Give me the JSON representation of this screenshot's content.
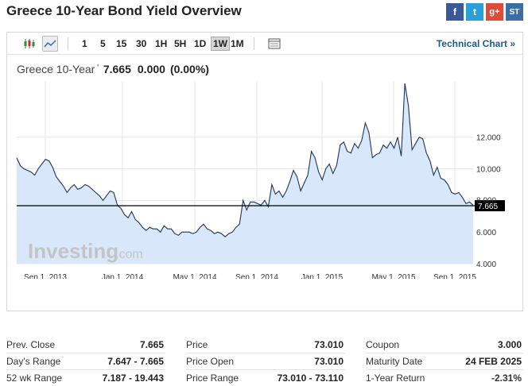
{
  "page": {
    "title": "Greece 10-Year Bond Yield Overview",
    "social": [
      "f",
      "t",
      "g+",
      "ST"
    ]
  },
  "toolbar": {
    "timeframes": [
      "1",
      "5",
      "15",
      "30",
      "1H",
      "5H",
      "1D",
      "1W",
      "1M"
    ],
    "selected_timeframe": "1W",
    "technical_link": "Technical Chart »"
  },
  "quote": {
    "name": "Greece 10-Year",
    "star": "*",
    "last": "7.665",
    "change": "0.000",
    "change_pct": "(0.00%)"
  },
  "chart_data": {
    "type": "area",
    "watermark": "Investing",
    "watermark_suffix": ".com",
    "y_ticks": [
      "12.000",
      "10.000",
      "8.000",
      "6.000",
      "4.000"
    ],
    "y_tick_values": [
      12,
      10,
      8,
      6,
      4
    ],
    "x_ticks": [
      "Sep 1, 2013",
      "Jan 1, 2014",
      "May 1, 2014",
      "Sep 1, 2014",
      "Jan 1, 2015",
      "May 1, 2015",
      "Sep 1, 2015"
    ],
    "current_value_label": "7.665",
    "current_value": 7.665,
    "ylim": [
      4,
      15.5
    ],
    "grid": true,
    "colors": {
      "line": "#1d3557",
      "fill": "#d8e8fa",
      "grid": "#e6e6e6",
      "current_line": "#000000"
    },
    "values": [
      10.7,
      10.2,
      10.0,
      9.9,
      9.8,
      9.6,
      10.0,
      10.3,
      10.6,
      10.5,
      10.1,
      9.5,
      9.2,
      8.9,
      8.5,
      8.8,
      9.0,
      8.7,
      8.8,
      9.0,
      8.9,
      8.7,
      8.5,
      8.3,
      8.0,
      8.3,
      8.6,
      8.5,
      7.7,
      7.5,
      7.1,
      6.9,
      7.3,
      6.8,
      6.6,
      6.3,
      6.1,
      6.3,
      6.2,
      6.2,
      6.0,
      6.4,
      6.2,
      6.2,
      5.9,
      5.8,
      6.0,
      6.0,
      6.0,
      5.9,
      6.0,
      6.3,
      6.5,
      6.2,
      6.1,
      5.9,
      6.0,
      5.9,
      5.7,
      5.9,
      6.0,
      6.3,
      6.5,
      8.0,
      7.4,
      7.9,
      7.9,
      7.8,
      7.7,
      8.0,
      7.6,
      9.0,
      8.4,
      8.6,
      8.2,
      8.6,
      9.2,
      9.9,
      9.5,
      8.6,
      9.1,
      9.6,
      11.1,
      10.7,
      9.8,
      9.3,
      10.0,
      10.3,
      9.7,
      10.2,
      11.5,
      11.7,
      11.1,
      11.0,
      11.6,
      11.3,
      11.8,
      12.9,
      12.3,
      10.7,
      10.9,
      11.0,
      11.5,
      11.3,
      11.7,
      11.3,
      12.0,
      10.8,
      15.4,
      14.0,
      11.2,
      11.6,
      12.0,
      11.9,
      11.0,
      10.5,
      9.6,
      10.1,
      9.4,
      9.3,
      9.0,
      8.5,
      8.4,
      8.5,
      8.2,
      7.8,
      7.9,
      7.7
    ]
  },
  "stats": {
    "col1": [
      {
        "label": "Prev. Close",
        "value": "7.665"
      },
      {
        "label": "Day's Range",
        "value": "7.647 - 7.665"
      },
      {
        "label": "52 wk Range",
        "value": "7.187 - 19.443"
      }
    ],
    "col2": [
      {
        "label": "Price",
        "value": "73.010"
      },
      {
        "label": "Price Open",
        "value": "73.010"
      },
      {
        "label": "Price Range",
        "value": "73.010 - 73.110"
      }
    ],
    "col3": [
      {
        "label": "Coupon",
        "value": "3.000"
      },
      {
        "label": "Maturity Date",
        "value": "24 FEB 2025"
      },
      {
        "label": "1-Year Return",
        "value": "-2.31%"
      }
    ]
  }
}
